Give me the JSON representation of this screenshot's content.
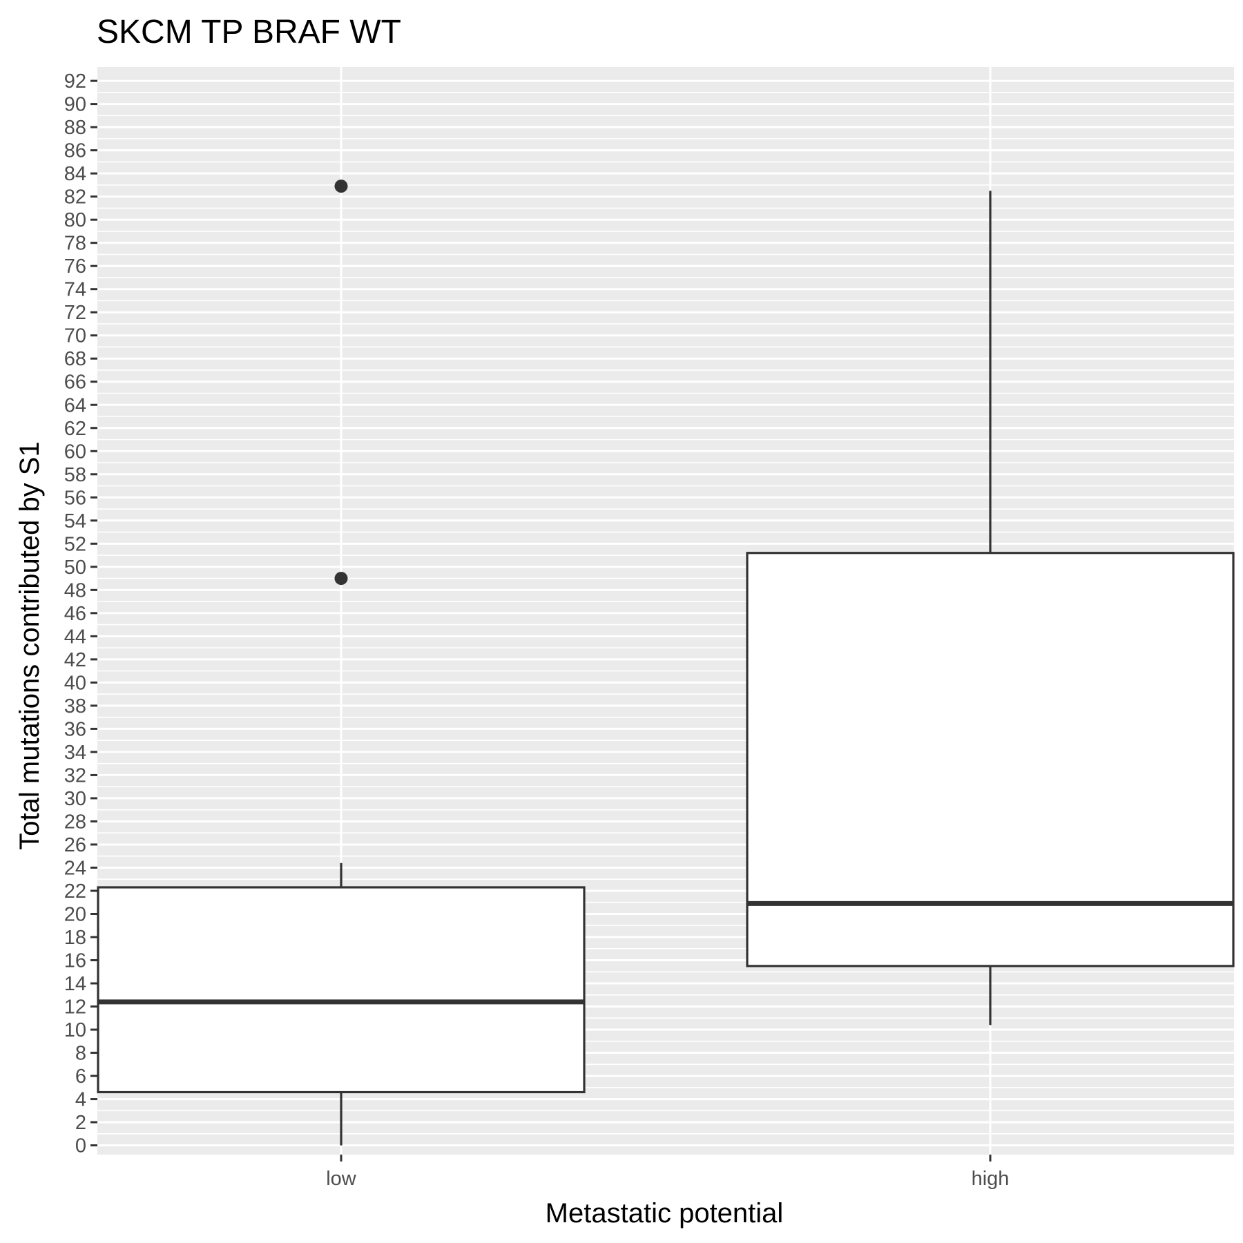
{
  "chart_data": {
    "type": "box",
    "title": "SKCM TP BRAF WT",
    "xlabel": "Metastatic potential",
    "ylabel": "Total mutations contributed by S1",
    "categories": [
      "low",
      "high"
    ],
    "ylim": [
      0,
      92
    ],
    "yticks": [
      0,
      2,
      4,
      6,
      8,
      10,
      12,
      14,
      16,
      18,
      20,
      22,
      24,
      26,
      28,
      30,
      32,
      34,
      36,
      38,
      40,
      42,
      44,
      46,
      48,
      50,
      52,
      54,
      56,
      58,
      60,
      62,
      64,
      66,
      68,
      70,
      72,
      74,
      76,
      78,
      80,
      82,
      84,
      86,
      88,
      90,
      92
    ],
    "grid": true,
    "boxes": [
      {
        "category": "low",
        "whisker_low": 0,
        "q1": 4.6,
        "median": 12.4,
        "q3": 22.3,
        "whisker_high": 24.4,
        "outliers": [
          49,
          82.9
        ]
      },
      {
        "category": "high",
        "whisker_low": 10.4,
        "q1": 15.5,
        "median": 20.9,
        "q3": 51.2,
        "whisker_high": 82.5,
        "outliers": []
      }
    ],
    "colors": {
      "panel_background": "#ebebeb",
      "gridline": "#ffffff",
      "box_fill": "#ffffff",
      "box_stroke": "#333333",
      "tick_text": "#4d4d4d",
      "title_text": "#000000"
    }
  }
}
